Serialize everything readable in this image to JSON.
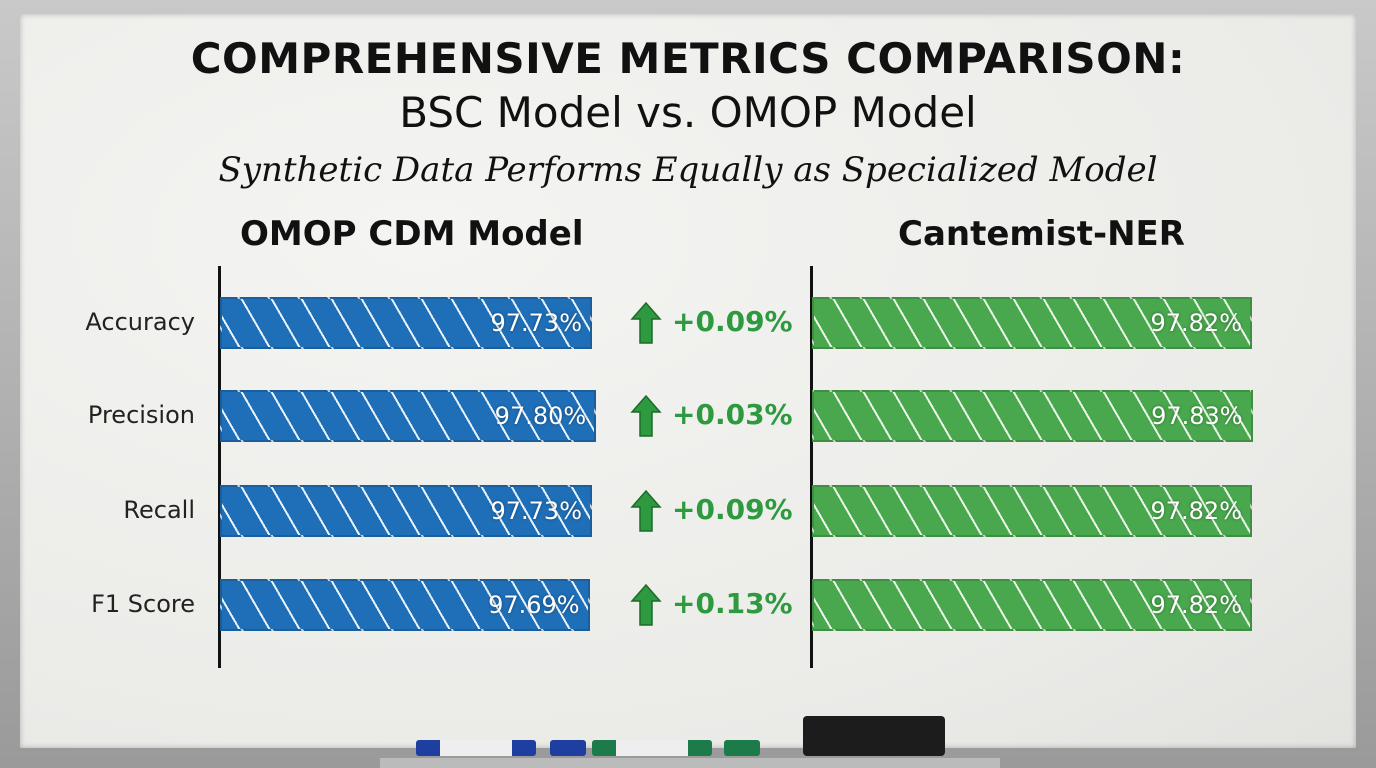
{
  "title": "COMPREHENSIVE METRICS COMPARISON:",
  "subtitle": "BSC Model vs. OMOP Model",
  "tagline": "Synthetic Data Performs Equally as Specialized Model",
  "colors": {
    "omop": "#1f6fb8",
    "cantemist": "#49a84d",
    "delta": "#2e9a3f"
  },
  "chart_data": {
    "type": "bar",
    "orientation": "horizontal",
    "categories": [
      "Accuracy",
      "Precision",
      "Recall",
      "F1 Score"
    ],
    "series": [
      {
        "name": "OMOP CDM Model",
        "values": [
          97.73,
          97.8,
          97.73,
          97.69
        ],
        "labels": [
          "97.73%",
          "97.80%",
          "97.73%",
          "97.69%"
        ]
      },
      {
        "name": "Cantemist-NER",
        "values": [
          97.82,
          97.83,
          97.82,
          97.82
        ],
        "labels": [
          "97.82%",
          "97.83%",
          "97.82%",
          "97.82%"
        ]
      }
    ],
    "differences": [
      "+0.09%",
      "+0.03%",
      "+0.09%",
      "+0.13%"
    ],
    "difference_icon": "up-arrow-icon"
  }
}
